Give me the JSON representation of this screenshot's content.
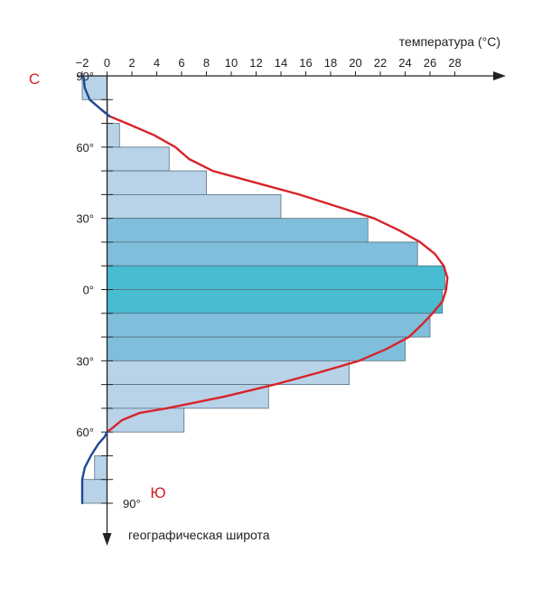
{
  "chart_data": {
    "type": "bar",
    "orientation": "horizontal",
    "x_axis": {
      "label": "температура (°C)",
      "ticks": [
        -2,
        0,
        2,
        4,
        6,
        8,
        10,
        12,
        14,
        16,
        18,
        20,
        22,
        24,
        26,
        28
      ],
      "tick_labels": [
        "−2",
        "0",
        "2",
        "4",
        "6",
        "8",
        "10",
        "12",
        "14",
        "16",
        "18",
        "20",
        "22",
        "24",
        "26",
        "28"
      ],
      "range": [
        -2,
        30
      ]
    },
    "y_axis": {
      "label": "географическая широта",
      "range_signed_latitude": [
        90,
        -90
      ],
      "tick_labels": [
        {
          "lat": 90,
          "text": "90°"
        },
        {
          "lat": 60,
          "text": "60°"
        },
        {
          "lat": 30,
          "text": "30°"
        },
        {
          "lat": 0,
          "text": "0°"
        },
        {
          "lat": -30,
          "text": "30°"
        },
        {
          "lat": -60,
          "text": "60°"
        },
        {
          "lat": -90,
          "text": "90°"
        }
      ],
      "minor_tick_step": 10
    },
    "pole_labels": {
      "north": "С",
      "south": "Ю"
    },
    "bars": [
      {
        "lat_from": 90,
        "lat_to": 80,
        "value": -2
      },
      {
        "lat_from": 80,
        "lat_to": 70,
        "value": 0
      },
      {
        "lat_from": 70,
        "lat_to": 60,
        "value": 1
      },
      {
        "lat_from": 60,
        "lat_to": 50,
        "value": 5
      },
      {
        "lat_from": 50,
        "lat_to": 40,
        "value": 8
      },
      {
        "lat_from": 40,
        "lat_to": 30,
        "value": 14
      },
      {
        "lat_from": 30,
        "lat_to": 20,
        "value": 21
      },
      {
        "lat_from": 20,
        "lat_to": 10,
        "value": 25
      },
      {
        "lat_from": 10,
        "lat_to": 0,
        "value": 27.2
      },
      {
        "lat_from": 0,
        "lat_to": -10,
        "value": 27
      },
      {
        "lat_from": -10,
        "lat_to": -20,
        "value": 26
      },
      {
        "lat_from": -20,
        "lat_to": -30,
        "value": 24
      },
      {
        "lat_from": -30,
        "lat_to": -40,
        "value": 19.5
      },
      {
        "lat_from": -40,
        "lat_to": -50,
        "value": 13
      },
      {
        "lat_from": -50,
        "lat_to": -60,
        "value": 6.2
      },
      {
        "lat_from": -60,
        "lat_to": -70,
        "value": 0
      },
      {
        "lat_from": -70,
        "lat_to": -80,
        "value": -1
      },
      {
        "lat_from": -80,
        "lat_to": -90,
        "value": -2
      }
    ],
    "curve": {
      "points": [
        {
          "lat": 90,
          "temp": -1.9
        },
        {
          "lat": 85,
          "temp": -1.8
        },
        {
          "lat": 80,
          "temp": -1.4
        },
        {
          "lat": 76,
          "temp": -0.5
        },
        {
          "lat": 73,
          "temp": 0.2
        },
        {
          "lat": 70,
          "temp": 1.6
        },
        {
          "lat": 65,
          "temp": 3.8
        },
        {
          "lat": 60,
          "temp": 5.5
        },
        {
          "lat": 55,
          "temp": 6.6
        },
        {
          "lat": 50,
          "temp": 8.5
        },
        {
          "lat": 45,
          "temp": 12
        },
        {
          "lat": 40,
          "temp": 15.5
        },
        {
          "lat": 35,
          "temp": 18.5
        },
        {
          "lat": 30,
          "temp": 21.5
        },
        {
          "lat": 25,
          "temp": 23.5
        },
        {
          "lat": 20,
          "temp": 25.2
        },
        {
          "lat": 15,
          "temp": 26.4
        },
        {
          "lat": 10,
          "temp": 27.1
        },
        {
          "lat": 5,
          "temp": 27.4
        },
        {
          "lat": 0,
          "temp": 27.3
        },
        {
          "lat": -5,
          "temp": 27.0
        },
        {
          "lat": -10,
          "temp": 26.2
        },
        {
          "lat": -15,
          "temp": 25.3
        },
        {
          "lat": -20,
          "temp": 24.3
        },
        {
          "lat": -25,
          "temp": 22.5
        },
        {
          "lat": -30,
          "temp": 20.3
        },
        {
          "lat": -35,
          "temp": 17
        },
        {
          "lat": -40,
          "temp": 13.5
        },
        {
          "lat": -45,
          "temp": 9.5
        },
        {
          "lat": -50,
          "temp": 4.8
        },
        {
          "lat": -52,
          "temp": 2.6
        },
        {
          "lat": -55,
          "temp": 1.2
        },
        {
          "lat": -58,
          "temp": 0.5
        },
        {
          "lat": -60,
          "temp": 0
        },
        {
          "lat": -62,
          "temp": -0.2
        },
        {
          "lat": -65,
          "temp": -0.7
        },
        {
          "lat": -70,
          "temp": -1.3
        },
        {
          "lat": -75,
          "temp": -1.8
        },
        {
          "lat": -80,
          "temp": -2
        },
        {
          "lat": -90,
          "temp": -2
        }
      ],
      "color_above_zero": "#d8232a",
      "color_below_zero": "#1c4b95"
    },
    "colors": {
      "axis": "#222222",
      "bar_fill_light": "#b8d2e8",
      "bar_fill_mid": "#7fbfdc",
      "bar_fill_equator": "#48bdd2",
      "bar_stroke": "#5a6f80",
      "pole_label": "#cc1f26"
    }
  }
}
